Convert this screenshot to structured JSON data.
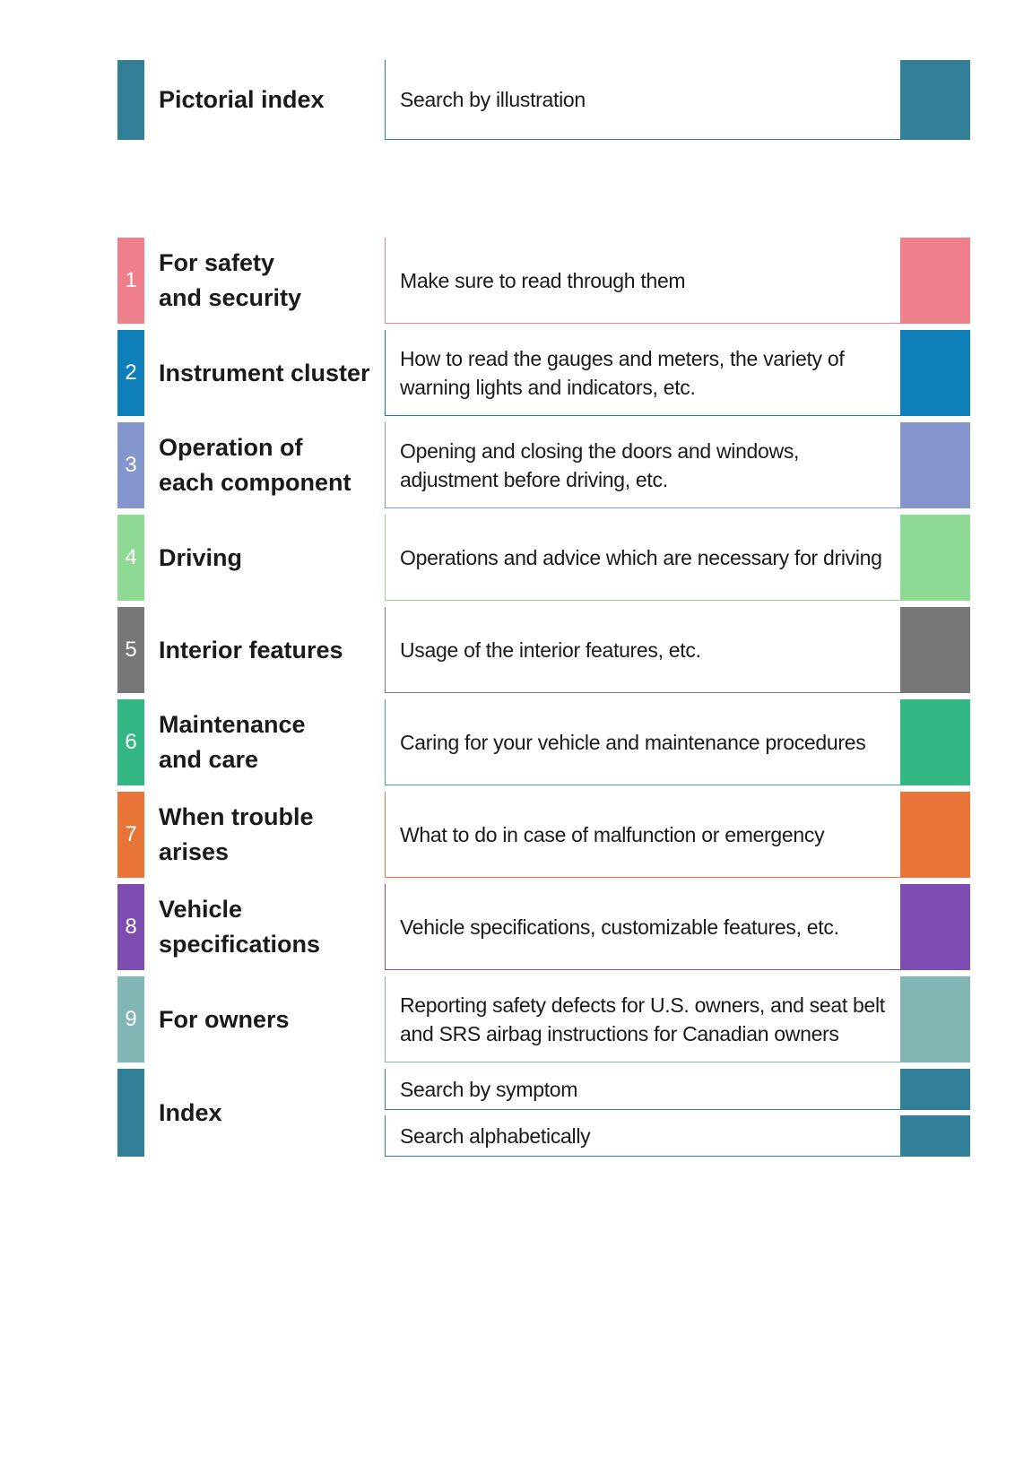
{
  "pictorial": {
    "title": "Pictorial index",
    "description": "Search by illustration",
    "color": "#327f98"
  },
  "sections": [
    {
      "number": "1",
      "title": [
        "For safety",
        "and security"
      ],
      "description": [
        "Make sure to read through them"
      ],
      "color": "#ef7f8a"
    },
    {
      "number": "2",
      "title": [
        "Instrument cluster"
      ],
      "description": [
        "How to read the gauges and meters, the variety of",
        "warning lights and indicators, etc."
      ],
      "color": "#0e7fb8"
    },
    {
      "number": "3",
      "title": [
        "Operation of",
        "each component"
      ],
      "description": [
        "Opening and closing the doors and windows,",
        "adjustment before driving, etc."
      ],
      "color": "#8595cd"
    },
    {
      "number": "4",
      "title": [
        "Driving"
      ],
      "description": [
        "Operations and advice which are necessary for driving"
      ],
      "color": "#8ed994"
    },
    {
      "number": "5",
      "title": [
        "Interior features"
      ],
      "description": [
        "Usage of the interior features, etc."
      ],
      "color": "#777777"
    },
    {
      "number": "6",
      "title": [
        "Maintenance",
        "and care"
      ],
      "description": [
        "Caring for your vehicle and maintenance procedures"
      ],
      "color": "#33b784"
    },
    {
      "number": "7",
      "title": [
        "When trouble",
        "arises"
      ],
      "description": [
        "What to do in case of malfunction or emergency"
      ],
      "color": "#e87437"
    },
    {
      "number": "8",
      "title": [
        "Vehicle",
        "specifications"
      ],
      "description": [
        "Vehicle specifications, customizable features, etc."
      ],
      "color": "#7e4db1"
    },
    {
      "number": "9",
      "title": [
        "For owners"
      ],
      "description": [
        "Reporting safety defects for U.S. owners, and seat belt",
        "and SRS airbag instructions for Canadian owners"
      ],
      "color": "#82b6b4"
    }
  ],
  "index": {
    "title": "Index",
    "items": [
      "Search by symptom",
      "Search alphabetically"
    ],
    "color": "#327f98"
  }
}
